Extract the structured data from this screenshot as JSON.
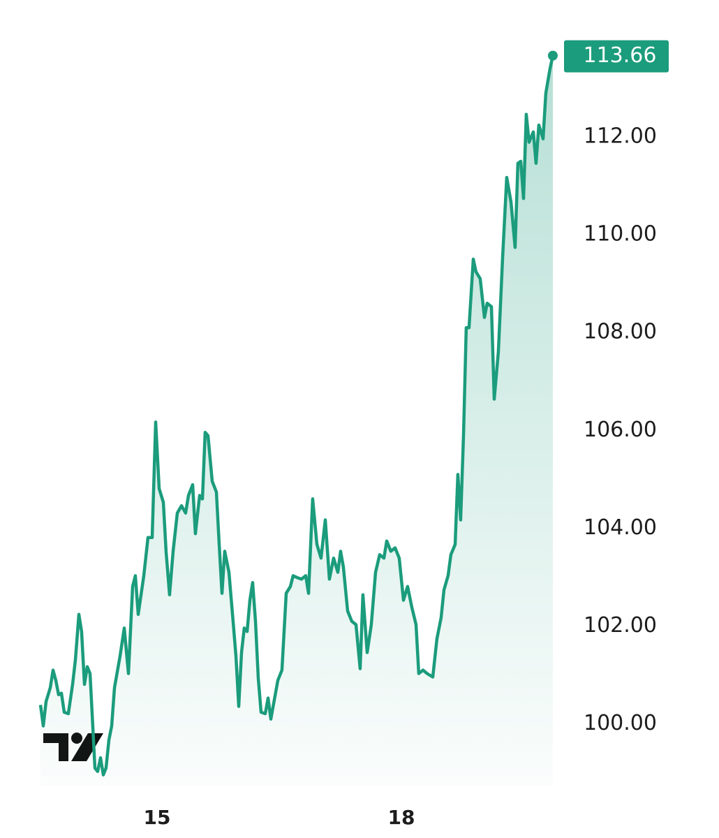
{
  "chart_data": {
    "type": "line",
    "color": "#1b9c7c",
    "x": [
      13.569,
      13.603,
      13.637,
      13.689,
      13.723,
      13.757,
      13.791,
      13.826,
      13.86,
      13.911,
      13.963,
      13.997,
      14.04,
      14.074,
      14.109,
      14.143,
      14.177,
      14.211,
      14.237,
      14.271,
      14.306,
      14.34,
      14.374,
      14.409,
      14.443,
      14.477,
      14.546,
      14.597,
      14.649,
      14.7,
      14.734,
      14.769,
      14.837,
      14.889,
      14.94,
      14.983,
      15.026,
      15.077,
      15.111,
      15.154,
      15.197,
      15.249,
      15.3,
      15.351,
      15.386,
      15.437,
      15.471,
      15.523,
      15.557,
      15.591,
      15.626,
      15.677,
      15.729,
      15.763,
      15.797,
      15.831,
      15.883,
      15.934,
      15.969,
      16.003,
      16.037,
      16.071,
      16.106,
      16.14,
      16.174,
      16.209,
      16.243,
      16.277,
      16.329,
      16.363,
      16.397,
      16.483,
      16.534,
      16.586,
      16.637,
      16.671,
      16.723,
      16.774,
      16.826,
      16.86,
      16.911,
      16.963,
      17.014,
      17.066,
      17.117,
      17.168,
      17.22,
      17.254,
      17.288,
      17.34,
      17.391,
      17.443,
      17.494,
      17.528,
      17.58,
      17.631,
      17.683,
      17.734,
      17.786,
      17.82,
      17.871,
      17.923,
      17.974,
      18.026,
      18.077,
      18.128,
      18.18,
      18.214,
      18.266,
      18.317,
      18.386,
      18.437,
      18.488,
      18.523,
      18.574,
      18.608,
      18.66,
      18.694,
      18.728,
      18.763,
      18.797,
      18.831,
      18.883,
      18.917,
      18.968,
      19.02,
      19.054,
      19.106,
      19.14,
      19.191,
      19.243,
      19.294,
      19.346,
      19.397,
      19.431,
      19.466,
      19.5,
      19.534,
      19.568,
      19.62,
      19.654,
      19.688,
      19.74,
      19.774,
      19.825,
      19.86
    ],
    "values": [
      100.39,
      99.96,
      100.46,
      100.74,
      101.1,
      100.89,
      100.6,
      100.63,
      100.24,
      100.21,
      100.81,
      101.31,
      102.24,
      101.89,
      100.81,
      101.17,
      101.03,
      99.96,
      99.1,
      99.03,
      99.31,
      98.96,
      99.1,
      99.67,
      99.96,
      100.74,
      101.39,
      101.96,
      101.03,
      102.81,
      103.03,
      102.24,
      103.03,
      103.81,
      103.81,
      106.17,
      104.81,
      104.53,
      103.53,
      102.64,
      103.53,
      104.31,
      104.46,
      104.31,
      104.67,
      104.89,
      103.89,
      104.67,
      104.6,
      105.96,
      105.89,
      104.96,
      104.74,
      103.67,
      102.67,
      103.53,
      103.1,
      102.1,
      101.39,
      100.36,
      101.46,
      101.96,
      101.89,
      102.53,
      102.89,
      102.1,
      100.93,
      100.24,
      100.21,
      100.53,
      100.1,
      100.89,
      101.1,
      102.67,
      102.81,
      103.03,
      102.99,
      102.96,
      103.03,
      102.67,
      104.6,
      103.67,
      103.39,
      104.17,
      102.96,
      103.39,
      103.1,
      103.53,
      103.21,
      102.31,
      102.1,
      102.03,
      101.13,
      102.64,
      101.46,
      102.03,
      103.1,
      103.46,
      103.39,
      103.74,
      103.53,
      103.6,
      103.39,
      102.53,
      102.81,
      102.39,
      102.03,
      101.03,
      101.1,
      101.03,
      100.96,
      101.74,
      102.17,
      102.74,
      103.03,
      103.46,
      103.67,
      105.1,
      104.17,
      105.89,
      108.1,
      108.1,
      109.5,
      109.24,
      109.1,
      108.31,
      108.6,
      108.53,
      106.64,
      107.6,
      109.53,
      111.17,
      110.67,
      109.74,
      111.46,
      111.5,
      110.74,
      112.46,
      111.89,
      112.1,
      111.46,
      112.24,
      111.96,
      112.89,
      113.39,
      113.66
    ],
    "xlim": [
      13.543,
      19.929
    ],
    "xticks": [
      15,
      18
    ],
    "ylim": [
      98.74,
      113.94
    ],
    "yticks": [
      {
        "value": 100,
        "label": "100.00"
      },
      {
        "value": 102,
        "label": "102.00"
      },
      {
        "value": 104,
        "label": "104.00"
      },
      {
        "value": 106,
        "label": "106.00"
      },
      {
        "value": 108,
        "label": "108.00"
      },
      {
        "value": 110,
        "label": "110.00"
      },
      {
        "value": 112,
        "label": "112.00"
      }
    ]
  }
}
